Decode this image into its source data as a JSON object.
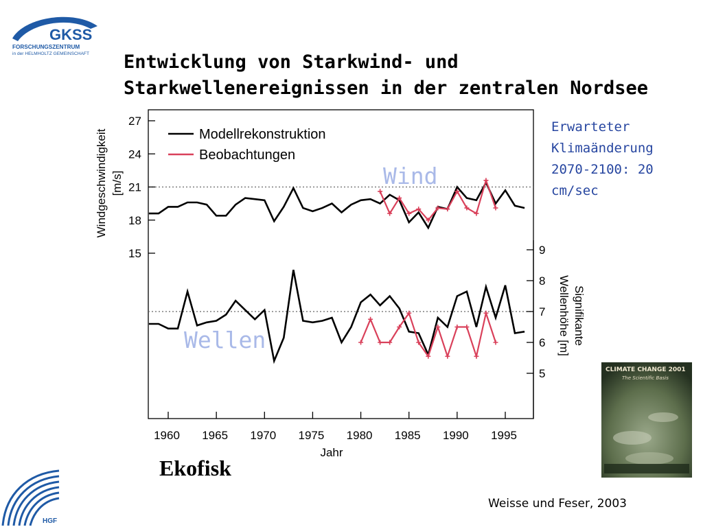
{
  "header": {
    "title_line1": "Entwicklung von Starkwind- und",
    "title_line2": "Starkwellenereignissen in der zentralen Nordsee",
    "logo_org": "GKSS",
    "logo_line1": "FORSCHUNGSZENTRUM",
    "logo_line2": "in der HELMHOLTZ GEMEINSCHAFT"
  },
  "note": {
    "line1": "Erwarteter",
    "line2": "Klimaänderung",
    "line3": "2070-2100: 20",
    "line4": "cm/sec"
  },
  "site_label": "Ekofisk",
  "citation": "Weisse und Feser, 2003",
  "footer_logo_text": "HGF",
  "book": {
    "title": "CLIMATE CHANGE 2001",
    "subtitle": "The Scientific Basis"
  },
  "colors": {
    "model": "#000000",
    "observations": "#d9405a",
    "annotation": "#2746a0",
    "panel_label": "#a9b9e8",
    "gkss_blue": "#1f5aa6"
  },
  "chart_data": {
    "type": "line",
    "xlabel": "Jahr",
    "xticks": [
      1960,
      1965,
      1970,
      1975,
      1980,
      1985,
      1990,
      1995
    ],
    "xlim": [
      1957.5,
      1998
    ],
    "legend": {
      "position": "top-left",
      "entries": [
        "Modellrekonstruktion",
        "Beobachtungen"
      ]
    },
    "panels": [
      {
        "label": "Wind",
        "axis_side": "left",
        "ylabel_line1": "Windgeschwindigkeit",
        "ylabel_line2": "[m/s]",
        "yticks": [
          15,
          18,
          21,
          24,
          27
        ],
        "reference_line": 21,
        "series": [
          {
            "name": "Modellrekonstruktion",
            "x": [
              1958,
              1959,
              1960,
              1961,
              1962,
              1963,
              1964,
              1965,
              1966,
              1967,
              1968,
              1969,
              1970,
              1971,
              1972,
              1973,
              1974,
              1975,
              1976,
              1977,
              1978,
              1979,
              1980,
              1981,
              1982,
              1983,
              1984,
              1985,
              1986,
              1987,
              1988,
              1989,
              1990,
              1991,
              1992,
              1993,
              1994,
              1995,
              1996,
              1997
            ],
            "y": [
              18.6,
              18.6,
              19.2,
              19.2,
              19.6,
              19.6,
              19.4,
              18.4,
              18.4,
              19.4,
              20.0,
              19.9,
              19.8,
              17.9,
              19.2,
              20.9,
              19.1,
              18.8,
              19.1,
              19.5,
              18.7,
              19.4,
              19.8,
              19.9,
              19.5,
              20.3,
              19.8,
              17.8,
              18.7,
              17.3,
              19.2,
              19.0,
              21.0,
              20.0,
              19.8,
              21.4,
              19.5,
              20.7,
              19.3,
              19.1
            ]
          },
          {
            "name": "Beobachtungen",
            "x": [
              1982,
              1983,
              1984,
              1985,
              1986,
              1987,
              1988,
              1989,
              1990,
              1991,
              1992,
              1993,
              1994
            ],
            "y": [
              20.6,
              18.6,
              20.0,
              18.6,
              19.0,
              18.0,
              19.1,
              19.0,
              20.6,
              19.1,
              18.6,
              21.6,
              19.1
            ]
          }
        ]
      },
      {
        "label": "Wellen",
        "axis_side": "right",
        "ylabel_line1": "Signifikante",
        "ylabel_line2": "Wellenhöhe [m]",
        "yticks": [
          5,
          6,
          7,
          8,
          9
        ],
        "reference_line": 7,
        "series": [
          {
            "name": "Modellrekonstruktion",
            "x": [
              1958,
              1959,
              1960,
              1961,
              1962,
              1963,
              1964,
              1965,
              1966,
              1967,
              1968,
              1969,
              1970,
              1971,
              1972,
              1973,
              1974,
              1975,
              1976,
              1977,
              1978,
              1979,
              1980,
              1981,
              1982,
              1983,
              1984,
              1985,
              1986,
              1987,
              1988,
              1989,
              1990,
              1991,
              1992,
              1993,
              1994,
              1995,
              1996,
              1997
            ],
            "y": [
              6.6,
              6.6,
              6.45,
              6.45,
              7.65,
              6.55,
              6.65,
              6.7,
              6.9,
              7.35,
              7.05,
              6.75,
              7.05,
              5.4,
              6.15,
              8.35,
              6.7,
              6.65,
              6.7,
              6.8,
              6.0,
              6.5,
              7.3,
              7.55,
              7.2,
              7.5,
              7.1,
              6.35,
              6.3,
              5.6,
              6.8,
              6.5,
              7.5,
              7.65,
              6.5,
              7.8,
              6.8,
              7.85,
              6.3,
              6.35
            ]
          },
          {
            "name": "Beobachtungen",
            "x": [
              1980,
              1981,
              1982,
              1983,
              1984,
              1985,
              1986,
              1987,
              1988,
              1989,
              1990,
              1991,
              1992,
              1993,
              1994
            ],
            "y": [
              6.0,
              6.75,
              6.0,
              6.0,
              6.5,
              6.95,
              6.0,
              5.55,
              6.5,
              5.55,
              6.5,
              6.5,
              5.55,
              6.95,
              6.0
            ]
          }
        ]
      }
    ]
  }
}
